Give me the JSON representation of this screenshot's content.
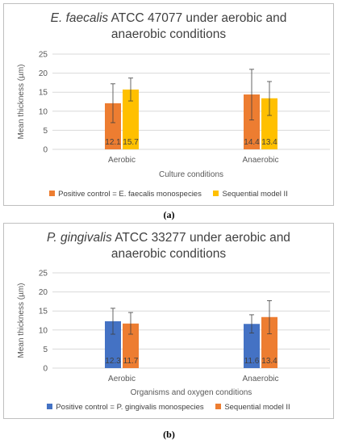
{
  "colors": {
    "orange": "#ED7D31",
    "yellow": "#FFC000",
    "blue": "#4472C4",
    "axis": "#d9d9d9",
    "err": "#404040"
  },
  "chart_data": [
    {
      "type": "bar",
      "title_italic": "E. faecalis",
      "title_line1": " ATCC 47077 under aerobic and",
      "title_line2": "anaerobic conditions",
      "xlabel": "Culture conditions",
      "ylabel": "Mean thickness (µm)",
      "ylim": [
        0,
        25
      ],
      "yticks": [
        0,
        5,
        10,
        15,
        20,
        25
      ],
      "categories": [
        "Aerobic",
        "Anaerobic"
      ],
      "series": [
        {
          "name": "Positive control = E. faecalis monospecies",
          "color": "#ED7D31",
          "values": [
            12.1,
            14.4
          ],
          "labels": [
            "12.1",
            "14.4"
          ],
          "err_low": [
            7.0,
            7.7
          ],
          "err_high": [
            17.2,
            21.0
          ]
        },
        {
          "name": "Sequential model II",
          "color": "#FFC000",
          "values": [
            15.7,
            13.4
          ],
          "labels": [
            "15.7",
            "13.4"
          ],
          "err_low": [
            12.7,
            8.9
          ],
          "err_high": [
            18.7,
            17.8
          ]
        }
      ],
      "legend": "bottom",
      "caption": "(a)"
    },
    {
      "type": "bar",
      "title_italic": "P. gingivalis",
      "title_line1": " ATCC 33277 under aerobic and",
      "title_line2": "anaerobic conditions",
      "xlabel": "Organisms and oxygen conditions",
      "ylabel": "Mean thickness (µm)",
      "ylim": [
        0,
        25
      ],
      "yticks": [
        0,
        5,
        10,
        15,
        20,
        25
      ],
      "categories": [
        "Aerobic",
        "Anaerobic"
      ],
      "series": [
        {
          "name": "Positive control = P. gingivalis monospecies",
          "color": "#4472C4",
          "values": [
            12.3,
            11.6
          ],
          "labels": [
            "12.3",
            "11.6"
          ],
          "err_low": [
            8.9,
            9.2
          ],
          "err_high": [
            15.7,
            14.0
          ]
        },
        {
          "name": "Sequential model II",
          "color": "#ED7D31",
          "values": [
            11.7,
            13.4
          ],
          "labels": [
            "11.7",
            "13.4"
          ],
          "err_low": [
            8.9,
            9.0
          ],
          "err_high": [
            14.6,
            17.7
          ]
        }
      ],
      "legend": "bottom",
      "caption": "(b)"
    }
  ]
}
